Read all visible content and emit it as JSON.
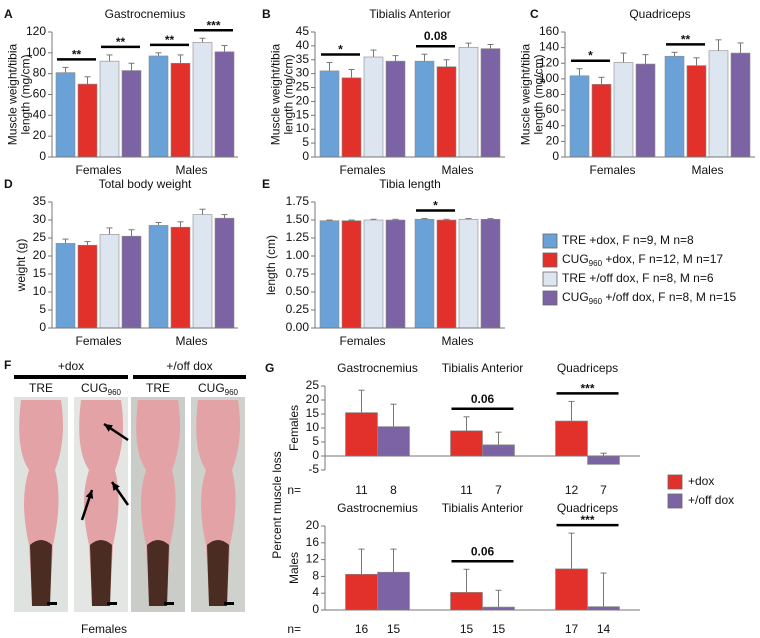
{
  "chart_data": [
    {
      "type": "bar",
      "panel": "A",
      "title": "Gastrocnemius",
      "y_label": [
        "Muscle weight/tibia",
        "length (mg/cm)"
      ],
      "categories": [
        "Females",
        "Males"
      ],
      "series": [
        {
          "values": [
            81,
            97
          ],
          "errors": [
            5,
            3
          ]
        },
        {
          "values": [
            70,
            90
          ],
          "errors": [
            7,
            8
          ]
        },
        {
          "values": [
            92,
            110
          ],
          "errors": [
            6,
            4
          ]
        },
        {
          "values": [
            83,
            101
          ],
          "errors": [
            7,
            6
          ]
        }
      ],
      "ylim": [
        0,
        120
      ],
      "yticks": [
        0,
        20,
        40,
        60,
        80,
        100,
        120
      ],
      "annotations": [
        {
          "text": "**",
          "category": 0,
          "bars": [
            0,
            1
          ]
        },
        {
          "text": "**",
          "category": 0,
          "bars": [
            2,
            3
          ]
        },
        {
          "text": "**",
          "category": 1,
          "bars": [
            0,
            1
          ]
        },
        {
          "text": "***",
          "category": 1,
          "bars": [
            2,
            3
          ]
        }
      ]
    },
    {
      "type": "bar",
      "panel": "B",
      "title": "Tibialis Anterior",
      "y_label": [
        "Muscle weight/tibia",
        "length (mg/cm)"
      ],
      "categories": [
        "Females",
        "Males"
      ],
      "series": [
        {
          "values": [
            31,
            34.5
          ],
          "errors": [
            3,
            2.5
          ]
        },
        {
          "values": [
            28.5,
            32.5
          ],
          "errors": [
            3,
            2.5
          ]
        },
        {
          "values": [
            36,
            39.5
          ],
          "errors": [
            2.5,
            1.5
          ]
        },
        {
          "values": [
            34.5,
            39
          ],
          "errors": [
            2,
            1.5
          ]
        }
      ],
      "ylim": [
        0,
        45
      ],
      "yticks": [
        0,
        5,
        10,
        15,
        20,
        25,
        30,
        35,
        40,
        45
      ],
      "annotations": [
        {
          "text": "*",
          "category": 0,
          "bars": [
            0,
            1
          ]
        },
        {
          "text": "0.08",
          "category": 1,
          "bars": [
            0,
            1
          ]
        }
      ]
    },
    {
      "type": "bar",
      "panel": "C",
      "title": "Quadriceps",
      "y_label": [
        "Muscle weight/tibia",
        "length (mg/cm)"
      ],
      "categories": [
        "Females",
        "Males"
      ],
      "series": [
        {
          "values": [
            104,
            129
          ],
          "errors": [
            9,
            5
          ]
        },
        {
          "values": [
            93,
            117
          ],
          "errors": [
            9,
            10
          ]
        },
        {
          "values": [
            121,
            136
          ],
          "errors": [
            12,
            14
          ]
        },
        {
          "values": [
            119,
            133
          ],
          "errors": [
            12,
            13
          ]
        }
      ],
      "ylim": [
        0,
        160
      ],
      "yticks": [
        0,
        20,
        40,
        60,
        80,
        100,
        120,
        140,
        160
      ],
      "annotations": [
        {
          "text": "*",
          "category": 0,
          "bars": [
            0,
            1
          ]
        },
        {
          "text": "**",
          "category": 1,
          "bars": [
            0,
            1
          ]
        }
      ]
    },
    {
      "type": "bar",
      "panel": "D",
      "title": "Total body weight",
      "y_label": [
        "weight (g)"
      ],
      "categories": [
        "Females",
        "Males"
      ],
      "series": [
        {
          "values": [
            23.5,
            28.5
          ],
          "errors": [
            1.2,
            0.8
          ]
        },
        {
          "values": [
            23,
            28
          ],
          "errors": [
            1,
            1.5
          ]
        },
        {
          "values": [
            26,
            31.5
          ],
          "errors": [
            1.8,
            1.5
          ]
        },
        {
          "values": [
            25.5,
            30.5
          ],
          "errors": [
            1.8,
            1
          ]
        }
      ],
      "ylim": [
        0,
        35
      ],
      "yticks": [
        0,
        5,
        10,
        15,
        20,
        25,
        30,
        35
      ]
    },
    {
      "type": "bar",
      "panel": "E",
      "title": "Tibia length",
      "y_label": [
        "length (cm)"
      ],
      "categories": [
        "Females",
        "Males"
      ],
      "series": [
        {
          "values": [
            1.49,
            1.51
          ],
          "errors": [
            0.01,
            0.01
          ]
        },
        {
          "values": [
            1.49,
            1.5
          ],
          "errors": [
            0.01,
            0.01
          ]
        },
        {
          "values": [
            1.5,
            1.51
          ],
          "errors": [
            0.01,
            0.01
          ]
        },
        {
          "values": [
            1.5,
            1.51
          ],
          "errors": [
            0.01,
            0.01
          ]
        }
      ],
      "ylim": [
        0,
        1.75
      ],
      "yticks": [
        {
          "value": 0,
          "label": "0.00"
        },
        {
          "value": 0.25,
          "label": "0.25"
        },
        {
          "value": 0.5,
          "label": "0.50"
        },
        {
          "value": 0.75,
          "label": "0.75"
        },
        {
          "value": 1,
          "label": "1.00"
        },
        {
          "value": 1.25,
          "label": "1.25"
        },
        {
          "value": 1.5,
          "label": "1.50"
        },
        {
          "value": 1.75,
          "label": "1.75"
        }
      ],
      "annotations": [
        {
          "text": "*",
          "category": 1,
          "bars": [
            0,
            1
          ]
        }
      ]
    },
    {
      "type": "bar",
      "panel": "G",
      "y_label": [
        "Percent muscle loss"
      ],
      "row_label": "Females",
      "n_label": "n=",
      "categories": [
        "Gastrocnemius",
        "Tibialis Anterior",
        "Quadriceps"
      ],
      "legend": [
        {
          "name": "+dox",
          "color": "#e2312b"
        },
        {
          "name": "+/off dox",
          "color": "#7c64a4"
        }
      ],
      "series": [
        {
          "values": [
            15.5,
            9,
            12.5
          ],
          "errors": [
            8,
            5,
            7
          ],
          "n": [
            11,
            11,
            12
          ]
        },
        {
          "values": [
            10.5,
            4,
            -3
          ],
          "errors": [
            8,
            4.5,
            4
          ],
          "n": [
            8,
            7,
            7
          ]
        }
      ],
      "ylim": [
        -5,
        25
      ],
      "yticks": [
        -5,
        0,
        5,
        10,
        15,
        20,
        25
      ],
      "annotations": [
        {
          "text": "0.06",
          "category": 1,
          "bars": [
            0,
            1
          ]
        },
        {
          "text": "***",
          "category": 2,
          "bars": [
            0,
            1
          ]
        }
      ]
    },
    {
      "type": "bar",
      "row_label": "Males",
      "n_label": "n=",
      "categories": [
        "Gastrocnemius",
        "Tibialis Anterior",
        "Quadriceps"
      ],
      "series": [
        {
          "values": [
            8.5,
            4.2,
            9.8
          ],
          "errors": [
            6,
            5.5,
            8.5
          ],
          "n": [
            16,
            15,
            17
          ]
        },
        {
          "values": [
            9,
            0.7,
            0.8
          ],
          "errors": [
            5.5,
            4,
            8
          ],
          "n": [
            15,
            15,
            14
          ]
        }
      ],
      "ylim": [
        0,
        20
      ],
      "yticks": [
        0,
        4,
        8,
        12,
        16,
        20
      ],
      "annotations": [
        {
          "text": "0.06",
          "category": 1,
          "bars": [
            0,
            1
          ]
        },
        {
          "text": "***",
          "category": 2,
          "bars": [
            0,
            1
          ]
        }
      ]
    }
  ],
  "legend": [
    {
      "name": "TRE +dox, F n=9, M n=8",
      "color": "#6aa2d8"
    },
    {
      "name": "CUG960 +dox, F n=12, M n=17",
      "color": "#e2312b"
    },
    {
      "name": "TRE +/off dox, F n=8, M n=6",
      "color": "#dde5f1"
    },
    {
      "name": "CUG960 +/off dox, F n=8, M n=15",
      "color": "#7c64a4"
    }
  ],
  "photo": {
    "panel": "F",
    "groups": [
      {
        "label": "+dox",
        "lanes": [
          "TRE",
          "CUG960"
        ]
      },
      {
        "label": "+/off dox",
        "lanes": [
          "TRE",
          "CUG960"
        ]
      }
    ],
    "caption": "Females"
  }
}
